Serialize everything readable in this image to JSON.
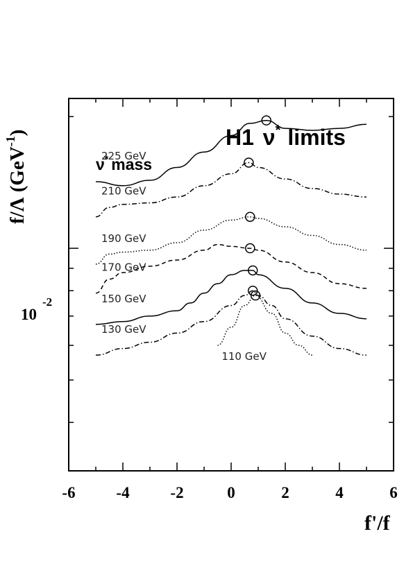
{
  "chart_data": {
    "type": "line",
    "title": "H1",
    "title_symbol": "ν",
    "title_sup": "*",
    "title_suffix": "limits",
    "legend_title_symbol": "ν",
    "legend_title_sup": "*",
    "legend_title_suffix": "mass",
    "xlabel": "f'/f",
    "ylabel": "f/Λ (GeV",
    "ylabel_sup": "-1",
    "ylabel_close": ")",
    "xlim": [
      -6,
      6
    ],
    "ylim": [
      0.0031,
      0.022
    ],
    "yscale": "log",
    "x_ticks": [
      "-6",
      "-4",
      "-2",
      "0",
      "2",
      "4",
      "6"
    ],
    "y_tick_label": "10",
    "y_tick_label_sup": "-2",
    "y_tick_value": 0.01,
    "series": [
      {
        "name": "225 GeV",
        "style": "solid",
        "x": [
          -5,
          -4,
          -3,
          -2,
          -1,
          0,
          0.7,
          1.3,
          2,
          3,
          4,
          5
        ],
        "y": [
          0.0142,
          0.0139,
          0.0143,
          0.0153,
          0.0166,
          0.0181,
          0.0193,
          0.0196,
          0.0188,
          0.0186,
          0.0188,
          0.0192
        ],
        "limit_x": 1.3,
        "limit_y": 0.0196
      },
      {
        "name": "210 GeV",
        "style": "dashdot",
        "x": [
          -5,
          -4.5,
          -4,
          -3,
          -2,
          -1,
          0,
          0.65,
          1,
          2,
          3,
          4,
          5
        ],
        "y": [
          0.0118,
          0.0124,
          0.0126,
          0.0127,
          0.0131,
          0.0139,
          0.0148,
          0.0157,
          0.0153,
          0.0144,
          0.0137,
          0.0133,
          0.0131
        ],
        "limit_x": 0.65,
        "limit_y": 0.0157
      },
      {
        "name": "190 GeV",
        "style": "dotted",
        "x": [
          -5,
          -4.5,
          -4,
          -3,
          -2,
          -1,
          0,
          0.7,
          1,
          2,
          3,
          4,
          5
        ],
        "y": [
          0.0092,
          0.0097,
          0.0098,
          0.0099,
          0.0103,
          0.011,
          0.0116,
          0.0118,
          0.0117,
          0.0112,
          0.0107,
          0.0102,
          0.0099
        ],
        "limit_x": 0.7,
        "limit_y": 0.0118
      },
      {
        "name": "170 GeV",
        "style": "dashed",
        "x": [
          -5,
          -4.5,
          -4,
          -3,
          -2,
          -1,
          -0.5,
          0,
          0.7,
          1,
          2,
          3,
          4,
          5
        ],
        "y": [
          0.0079,
          0.0085,
          0.0088,
          0.0091,
          0.0094,
          0.0099,
          0.0102,
          0.0101,
          0.01,
          0.0099,
          0.0093,
          0.0088,
          0.0083,
          0.0081
        ],
        "limit_x": 0.7,
        "limit_y": 0.01
      },
      {
        "name": "150 GeV",
        "style": "solid",
        "x": [
          -5,
          -4,
          -3,
          -2,
          -1.5,
          -1,
          -0.5,
          0,
          0.5,
          0.8,
          1,
          2,
          3,
          4,
          5
        ],
        "y": [
          0.0067,
          0.0068,
          0.007,
          0.0072,
          0.0075,
          0.0079,
          0.0083,
          0.0087,
          0.0089,
          0.0089,
          0.0087,
          0.0081,
          0.0075,
          0.0071,
          0.0069
        ],
        "limit_x": 0.8,
        "limit_y": 0.0089
      },
      {
        "name": "130 GeV",
        "style": "dashdot",
        "x": [
          -5,
          -4,
          -3,
          -2,
          -1,
          0,
          0.5,
          0.8,
          1,
          1.5,
          2,
          3,
          4,
          5
        ],
        "y": [
          0.0057,
          0.0059,
          0.0061,
          0.0064,
          0.0068,
          0.0074,
          0.0078,
          0.008,
          0.0078,
          0.0074,
          0.0069,
          0.0063,
          0.0059,
          0.0057
        ],
        "limit_x": 0.8,
        "limit_y": 0.008
      },
      {
        "name": "110 GeV",
        "style": "dotted",
        "x": [
          -0.5,
          0,
          0.5,
          0.9,
          1.5,
          2,
          2.5,
          3
        ],
        "y": [
          0.006,
          0.0066,
          0.0074,
          0.0078,
          0.0071,
          0.0064,
          0.006,
          0.0057
        ],
        "limit_x": 0.9,
        "limit_y": 0.0078
      }
    ],
    "grid": false,
    "legend": "none"
  }
}
